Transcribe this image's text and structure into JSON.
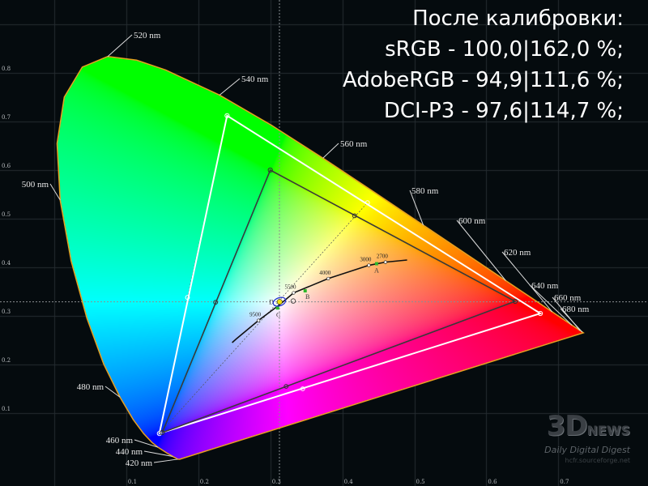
{
  "headline": {
    "lines": [
      "После калибровки:",
      "sRGB - 100,0|162,0 %;",
      "AdobeRGB - 94,9|111,6 %;",
      "DCI-P3 - 97,6|114,7 %;"
    ]
  },
  "logo": {
    "brand": "3D",
    "brand2": "NEWS",
    "tagline": "Daily Digital Digest",
    "watermark": "hcfr.sourceforge.net"
  },
  "chart_data": {
    "type": "scatter",
    "title": "",
    "xlabel": "",
    "ylabel": "",
    "xlim": [
      0,
      0.8
    ],
    "ylim": [
      0,
      0.9
    ],
    "grid": true,
    "x_ticks": [
      "0.1",
      "0.2",
      "0.3",
      "0.4",
      "0.5",
      "0.6",
      "0.7"
    ],
    "y_ticks": [
      "0.1",
      "0.2",
      "0.3",
      "0.4",
      "0.5",
      "0.6",
      "0.7",
      "0.8"
    ],
    "colors": {
      "background": "#050b0e",
      "grid": "#262d31",
      "locus_border": "#e8a020",
      "measured_gamut": "#ffffff",
      "reference_gamut": "#3a3a3a"
    },
    "spectral_locus": [
      [
        380,
        0.1741,
        0.005
      ],
      [
        420,
        0.1714,
        0.0051
      ],
      [
        440,
        0.1644,
        0.0109
      ],
      [
        450,
        0.1566,
        0.0177
      ],
      [
        460,
        0.144,
        0.0297
      ],
      [
        465,
        0.1355,
        0.0399
      ],
      [
        470,
        0.1241,
        0.0578
      ],
      [
        475,
        0.1096,
        0.0868
      ],
      [
        480,
        0.0913,
        0.1327
      ],
      [
        485,
        0.0687,
        0.2007
      ],
      [
        490,
        0.0454,
        0.295
      ],
      [
        495,
        0.0235,
        0.4127
      ],
      [
        500,
        0.0082,
        0.5384
      ],
      [
        505,
        0.0039,
        0.6548
      ],
      [
        510,
        0.0139,
        0.7502
      ],
      [
        515,
        0.0389,
        0.812
      ],
      [
        520,
        0.0743,
        0.8338
      ],
      [
        525,
        0.1142,
        0.8262
      ],
      [
        530,
        0.1547,
        0.8059
      ],
      [
        540,
        0.2296,
        0.7543
      ],
      [
        550,
        0.3016,
        0.6923
      ],
      [
        560,
        0.3731,
        0.6245
      ],
      [
        570,
        0.4441,
        0.5547
      ],
      [
        580,
        0.5125,
        0.4866
      ],
      [
        590,
        0.5752,
        0.4242
      ],
      [
        600,
        0.627,
        0.3725
      ],
      [
        610,
        0.6658,
        0.334
      ],
      [
        620,
        0.6915,
        0.3083
      ],
      [
        640,
        0.719,
        0.2809
      ],
      [
        660,
        0.73,
        0.27
      ],
      [
        680,
        0.7334,
        0.2666
      ],
      [
        700,
        0.7347,
        0.2653
      ]
    ],
    "wavelength_labels": [
      {
        "nm": 520,
        "text": "520 nm"
      },
      {
        "nm": 540,
        "text": "540 nm"
      },
      {
        "nm": 560,
        "text": "560 nm"
      },
      {
        "nm": 580,
        "text": "580 nm"
      },
      {
        "nm": 600,
        "text": "600 nm"
      },
      {
        "nm": 620,
        "text": "620 nm"
      },
      {
        "nm": 640,
        "text": "640 nm"
      },
      {
        "nm": 660,
        "text": "660 nm"
      },
      {
        "nm": 680,
        "text": "680 nm"
      },
      {
        "nm": 500,
        "text": "500 nm"
      },
      {
        "nm": 480,
        "text": "480 nm"
      },
      {
        "nm": 460,
        "text": "460 nm"
      },
      {
        "nm": 440,
        "text": "440 nm"
      },
      {
        "nm": 420,
        "text": "420 nm"
      }
    ],
    "series": [
      {
        "role": "measured-gamut",
        "points": [
          [
            0.24,
            0.712
          ],
          [
            0.675,
            0.305
          ],
          [
            0.146,
            0.058
          ]
        ],
        "midpoints": [
          [
            0.435,
            0.533
          ],
          [
            0.185,
            0.338
          ],
          [
            0.345,
            0.15
          ]
        ]
      },
      {
        "role": "reference-gamut",
        "points": [
          [
            0.3,
            0.6
          ],
          [
            0.64,
            0.33
          ],
          [
            0.15,
            0.06
          ]
        ],
        "midpoints": [
          [
            0.417,
            0.506
          ],
          [
            0.224,
            0.328
          ],
          [
            0.322,
            0.155
          ]
        ]
      }
    ],
    "planckian_locus": [
      [
        0.49,
        0.415
      ],
      [
        0.4599,
        0.4106
      ],
      [
        0.4369,
        0.4041
      ],
      [
        0.3805,
        0.3768
      ],
      [
        0.3324,
        0.3474
      ],
      [
        0.3135,
        0.3237
      ],
      [
        0.2836,
        0.2907
      ],
      [
        0.2525,
        0.2523
      ],
      [
        0.247,
        0.245
      ]
    ],
    "cct_labels": [
      {
        "text": "2700",
        "x": 0.4599,
        "y": 0.4106
      },
      {
        "text": "3000",
        "x": 0.4369,
        "y": 0.4041
      },
      {
        "text": "4000",
        "x": 0.3805,
        "y": 0.3768
      },
      {
        "text": "5500",
        "x": 0.3324,
        "y": 0.3474
      },
      {
        "text": "9500",
        "x": 0.2836,
        "y": 0.2907
      }
    ],
    "illuminants": [
      {
        "text": "A",
        "x": 0.4476,
        "y": 0.4074
      },
      {
        "text": "B",
        "x": 0.3484,
        "y": 0.3516
      },
      {
        "text": "C",
        "x": 0.3101,
        "y": 0.3162
      },
      {
        "text": "D",
        "x": 0.3127,
        "y": 0.329
      }
    ],
    "white_point": {
      "target": [
        0.3127,
        0.329
      ],
      "measured": [
        0.313,
        0.329
      ]
    }
  }
}
